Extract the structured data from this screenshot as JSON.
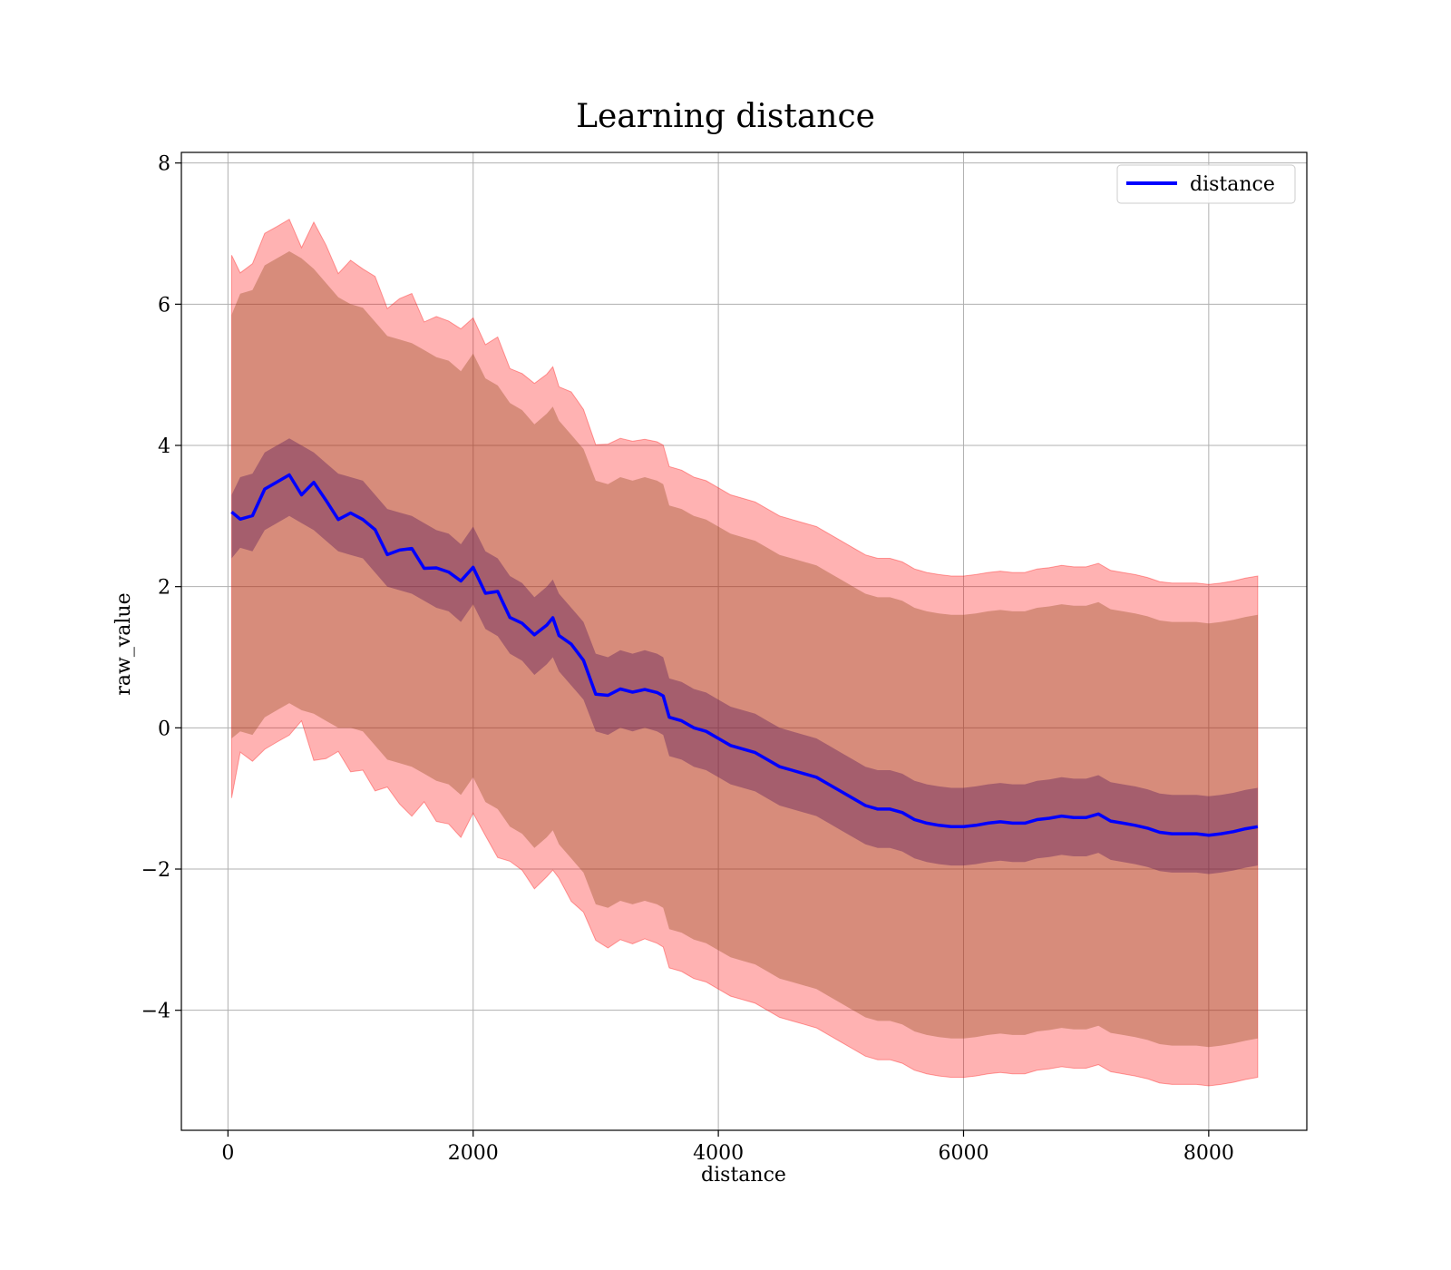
{
  "chart_data": {
    "type": "line",
    "title": "Learning distance",
    "xlabel": "distance",
    "ylabel": "raw_value",
    "xlim": [
      -380,
      8800
    ],
    "ylim": [
      -5.7,
      8.15
    ],
    "xticks": [
      0,
      2000,
      4000,
      6000,
      8000
    ],
    "xtick_labels": [
      "0",
      "2000",
      "4000",
      "6000",
      "8000"
    ],
    "yticks": [
      -4,
      -2,
      0,
      2,
      4,
      6,
      8
    ],
    "ytick_labels": [
      "−4",
      "−2",
      "0",
      "2",
      "4",
      "6",
      "8"
    ],
    "grid": true,
    "legend": {
      "position": "upper right",
      "entries": [
        "distance"
      ]
    },
    "colors": {
      "line": "#0000ff",
      "outer_band": "#ff0000",
      "outer_band_opacity": 0.3,
      "inner_band": "#8b4513",
      "inner_band_opacity": 0.35,
      "mean_band": "#5a1a5a",
      "mean_band_opacity": 0.4
    },
    "series": [
      {
        "name": "distance",
        "x": [
          30,
          100,
          200,
          300,
          400,
          500,
          600,
          700,
          800,
          900,
          1000,
          1100,
          1200,
          1300,
          1400,
          1500,
          1600,
          1700,
          1800,
          1900,
          2000,
          2100,
          2200,
          2300,
          2400,
          2500,
          2600,
          2650,
          2700,
          2800,
          2900,
          3000,
          3100,
          3200,
          3300,
          3400,
          3500,
          3550,
          3600,
          3700,
          3800,
          3900,
          4000,
          4100,
          4200,
          4300,
          4400,
          4500,
          4600,
          4700,
          4800,
          4900,
          5000,
          5100,
          5200,
          5300,
          5400,
          5500,
          5600,
          5700,
          5800,
          5900,
          6000,
          6100,
          6200,
          6300,
          6400,
          6500,
          6600,
          6700,
          6800,
          6900,
          7000,
          7100,
          7200,
          7300,
          7400,
          7500,
          7600,
          7700,
          7800,
          7900,
          8000,
          8100,
          8200,
          8300,
          8400
        ],
        "y": [
          2.85,
          3.05,
          3.05,
          3.35,
          3.45,
          3.55,
          3.45,
          3.35,
          3.2,
          3.05,
          3.0,
          2.95,
          2.75,
          2.55,
          2.5,
          2.45,
          2.35,
          2.25,
          2.2,
          2.05,
          2.3,
          1.95,
          1.85,
          1.6,
          1.5,
          1.3,
          1.45,
          1.55,
          1.35,
          1.15,
          0.95,
          0.5,
          0.45,
          0.55,
          0.5,
          0.55,
          0.5,
          0.45,
          0.15,
          0.1,
          0.0,
          -0.05,
          -0.15,
          -0.25,
          -0.3,
          -0.35,
          -0.45,
          -0.55,
          -0.6,
          -0.65,
          -0.7,
          -0.8,
          -0.9,
          -1.0,
          -1.1,
          -1.15,
          -1.15,
          -1.2,
          -1.3,
          -1.35,
          -1.38,
          -1.4,
          -1.4,
          -1.38,
          -1.35,
          -1.33,
          -1.35,
          -1.35,
          -1.3,
          -1.28,
          -1.25,
          -1.27,
          -1.27,
          -1.22,
          -1.32,
          -1.35,
          -1.38,
          -1.42,
          -1.48,
          -1.5,
          -1.5,
          -1.5,
          -1.52,
          -1.5,
          -1.47,
          -1.43,
          -1.4
        ],
        "mean_band_halfwidth": [
          0.45,
          0.5,
          0.55,
          0.55,
          0.55,
          0.55,
          0.55,
          0.55,
          0.55,
          0.55,
          0.55,
          0.55,
          0.55,
          0.55,
          0.55,
          0.55,
          0.55,
          0.55,
          0.55,
          0.55,
          0.55,
          0.55,
          0.55,
          0.55,
          0.55,
          0.55,
          0.55,
          0.55,
          0.55,
          0.55,
          0.55,
          0.55,
          0.55,
          0.55,
          0.55,
          0.55,
          0.55,
          0.55,
          0.55,
          0.55,
          0.55,
          0.55,
          0.55,
          0.55,
          0.55,
          0.55,
          0.55,
          0.55,
          0.55,
          0.55,
          0.55,
          0.55,
          0.55,
          0.55,
          0.55,
          0.55,
          0.55,
          0.55,
          0.55,
          0.55,
          0.55,
          0.55,
          0.55,
          0.55,
          0.55,
          0.55,
          0.55,
          0.55,
          0.55,
          0.55,
          0.55,
          0.55,
          0.55,
          0.55,
          0.55,
          0.55,
          0.55,
          0.55,
          0.55,
          0.55,
          0.55,
          0.55,
          0.55,
          0.55,
          0.55,
          0.55,
          0.55
        ],
        "inner_band_halfwidth": [
          3.0,
          3.1,
          3.15,
          3.2,
          3.2,
          3.2,
          3.2,
          3.15,
          3.1,
          3.05,
          3.0,
          3.0,
          3.0,
          3.0,
          3.0,
          3.0,
          3.0,
          3.0,
          3.0,
          3.0,
          3.0,
          3.0,
          3.0,
          3.0,
          3.0,
          3.0,
          3.0,
          3.0,
          3.0,
          3.0,
          3.0,
          3.0,
          3.0,
          3.0,
          3.0,
          3.0,
          3.0,
          3.0,
          3.0,
          3.0,
          3.0,
          3.0,
          3.0,
          3.0,
          3.0,
          3.0,
          3.0,
          3.0,
          3.0,
          3.0,
          3.0,
          3.0,
          3.0,
          3.0,
          3.0,
          3.0,
          3.0,
          3.0,
          3.0,
          3.0,
          3.0,
          3.0,
          3.0,
          3.0,
          3.0,
          3.0,
          3.0,
          3.0,
          3.0,
          3.0,
          3.0,
          3.0,
          3.0,
          3.0,
          3.0,
          3.0,
          3.0,
          3.0,
          3.0,
          3.0,
          3.0,
          3.0,
          3.0,
          3.0,
          3.0,
          3.0,
          3.0
        ],
        "outer_band_halfwidth": [
          3.5,
          3.55,
          3.6,
          3.6,
          3.6,
          3.6,
          3.6,
          3.6,
          3.6,
          3.55,
          3.55,
          3.55,
          3.55,
          3.55,
          3.55,
          3.55,
          3.55,
          3.55,
          3.55,
          3.55,
          3.55,
          3.55,
          3.55,
          3.55,
          3.55,
          3.55,
          3.55,
          3.55,
          3.55,
          3.55,
          3.55,
          3.55,
          3.55,
          3.55,
          3.55,
          3.55,
          3.55,
          3.55,
          3.55,
          3.55,
          3.55,
          3.55,
          3.55,
          3.55,
          3.55,
          3.55,
          3.55,
          3.55,
          3.55,
          3.55,
          3.55,
          3.55,
          3.55,
          3.55,
          3.55,
          3.55,
          3.55,
          3.55,
          3.55,
          3.55,
          3.55,
          3.55,
          3.55,
          3.55,
          3.55,
          3.55,
          3.55,
          3.55,
          3.55,
          3.55,
          3.55,
          3.55,
          3.55,
          3.55,
          3.55,
          3.55,
          3.55,
          3.55,
          3.55,
          3.55,
          3.55,
          3.55,
          3.55,
          3.55,
          3.55,
          3.55,
          3.55
        ]
      }
    ]
  }
}
